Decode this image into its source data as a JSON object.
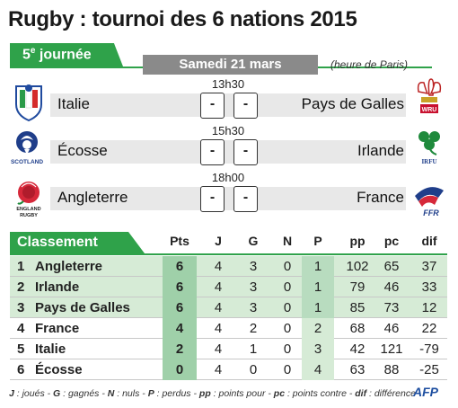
{
  "header": {
    "title": "Rugby : tournoi des 6 nations 2015",
    "round_main": "5",
    "round_sup": "e",
    "round_rest": " journée",
    "date": "Samedi 21 mars",
    "tz_note": "(heure de Paris)"
  },
  "matches": [
    {
      "time": "13h30",
      "home": "Italie",
      "away": "Pays de Galles",
      "home_score": "-",
      "away_score": "-",
      "home_logo": "italy-federation-logo",
      "away_logo": "wales-wru-logo"
    },
    {
      "time": "15h30",
      "home": "Écosse",
      "away": "Irlande",
      "home_score": "-",
      "away_score": "-",
      "home_logo": "scotland-thistle-logo",
      "away_logo": "ireland-irfu-logo"
    },
    {
      "time": "18h00",
      "home": "Angleterre",
      "away": "France",
      "home_score": "-",
      "away_score": "-",
      "home_logo": "england-rose-logo",
      "away_logo": "france-ffr-logo"
    }
  ],
  "logo_text": {
    "scotland": "SCOTLAND",
    "wru": "WRU",
    "irfu": "IRFU",
    "england_1": "ENGLAND",
    "england_2": "RUGBY",
    "ffr": "FFR"
  },
  "standings": {
    "label": "Classement",
    "columns": [
      "Pts",
      "J",
      "G",
      "N",
      "P",
      "pp",
      "pc",
      "dif"
    ],
    "rows": [
      {
        "rank": "1",
        "team": "Angleterre",
        "pts": "6",
        "j": "4",
        "g": "3",
        "n": "0",
        "p": "1",
        "pp": "102",
        "pc": "65",
        "dif": "37"
      },
      {
        "rank": "2",
        "team": "Irlande",
        "pts": "6",
        "j": "4",
        "g": "3",
        "n": "0",
        "p": "1",
        "pp": "79",
        "pc": "46",
        "dif": "33"
      },
      {
        "rank": "3",
        "team": "Pays de Galles",
        "pts": "6",
        "j": "4",
        "g": "3",
        "n": "0",
        "p": "1",
        "pp": "85",
        "pc": "73",
        "dif": "12"
      },
      {
        "rank": "4",
        "team": "France",
        "pts": "4",
        "j": "4",
        "g": "2",
        "n": "0",
        "p": "2",
        "pp": "68",
        "pc": "46",
        "dif": "22"
      },
      {
        "rank": "5",
        "team": "Italie",
        "pts": "2",
        "j": "4",
        "g": "1",
        "n": "0",
        "p": "3",
        "pp": "42",
        "pc": "121",
        "dif": "-79"
      },
      {
        "rank": "6",
        "team": "Écosse",
        "pts": "0",
        "j": "4",
        "g": "0",
        "n": "0",
        "p": "4",
        "pp": "63",
        "pc": "88",
        "dif": "-25"
      }
    ]
  },
  "footer": {
    "j_key": "J",
    "j_txt": " : joués - ",
    "g_key": "G",
    "g_txt": " : gagnés - ",
    "n_key": "N",
    "n_txt": " : nuls - ",
    "p_key": "P",
    "p_txt": " : perdus - ",
    "pp_key": "pp",
    "pp_txt": " : points pour - ",
    "pc_key": "pc",
    "pc_txt": " : points contre - ",
    "dif_key": "dif",
    "dif_txt": " : différence",
    "credit": "AFP"
  },
  "colors": {
    "accent_green": "#2fa24a",
    "points_green": "#9fd0a9",
    "date_grey": "#8a8a8a"
  }
}
